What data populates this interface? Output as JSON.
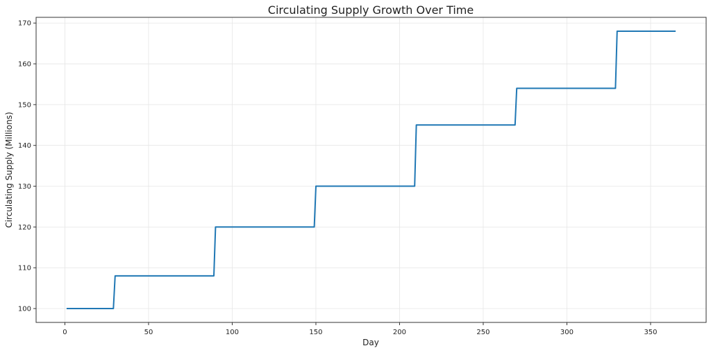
{
  "chart_data": {
    "type": "line",
    "title": "Circulating Supply Growth Over Time",
    "xlabel": "Day",
    "ylabel": "Circulating Supply (Millions)",
    "xlim": [
      -17.2,
      383.2
    ],
    "ylim": [
      96.6,
      171.4
    ],
    "xticks": [
      0,
      50,
      100,
      150,
      200,
      250,
      300,
      350
    ],
    "yticks": [
      100,
      110,
      120,
      130,
      140,
      150,
      160,
      170
    ],
    "grid": true,
    "series": [
      {
        "color": "#1f77b4",
        "x": [
          1,
          29,
          30,
          89,
          90,
          149,
          150,
          209,
          210,
          269,
          270,
          329,
          330,
          365
        ],
        "y": [
          100,
          100,
          108,
          108,
          120,
          120,
          130,
          130,
          145,
          145,
          154,
          154,
          168,
          168
        ]
      }
    ]
  }
}
